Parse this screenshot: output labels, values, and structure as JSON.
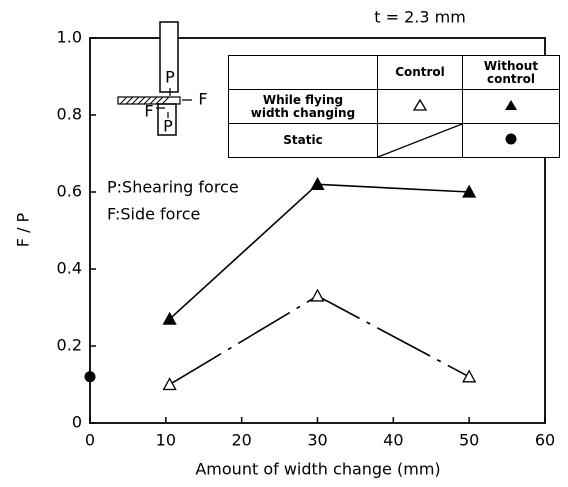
{
  "chart_data": {
    "type": "line",
    "annotation": "t = 2.3 mm",
    "xlabel": "Amount of width change (mm)",
    "ylabel": "F / P",
    "xlim": [
      0,
      60
    ],
    "xticks": [
      0,
      10,
      20,
      30,
      40,
      50,
      60
    ],
    "ylim": [
      0,
      1
    ],
    "yticks": [
      0,
      0.2,
      0.4,
      0.6,
      0.8,
      {
        "value": 1,
        "label": "1.0"
      }
    ],
    "legend_rows": [
      "While flying width changing"
    ],
    "notes": [
      "P:Shearing force",
      "F:Side force"
    ],
    "inset_labels": [
      "P",
      "F",
      "F",
      "P"
    ],
    "series": [
      {
        "name": "Control",
        "color": "#000",
        "marker": "triangle-open",
        "linestyle": "dashed",
        "x": [
          10.5,
          30,
          50
        ],
        "values": [
          0.1,
          0.33,
          0.12
        ]
      },
      {
        "name": "Without control",
        "color": "#000",
        "marker": "triangle",
        "linestyle": "solid",
        "x": [
          10.5,
          30,
          50
        ],
        "values": [
          0.27,
          0.62,
          0.6
        ]
      },
      {
        "name": "Static",
        "color": "#000",
        "marker": "circle",
        "linestyle": "none",
        "x": [
          0
        ],
        "values": [
          0.12
        ]
      }
    ]
  }
}
